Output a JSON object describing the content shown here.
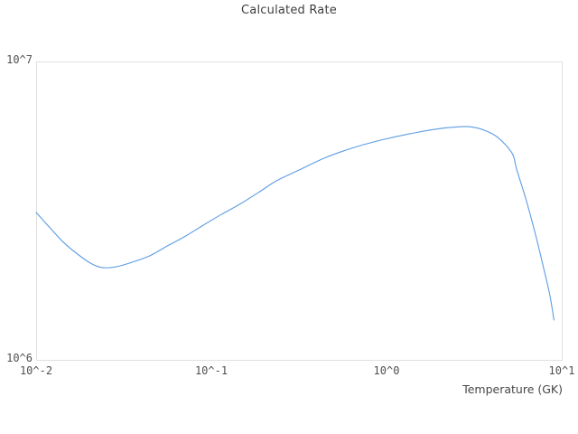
{
  "chart": {
    "title": "Calculated Rate",
    "x_axis": {
      "label": "Temperature (GK)"
    }
  },
  "chart_data": {
    "type": "line",
    "title": "Calculated Rate",
    "xlabel": "Temperature (GK)",
    "ylabel": "",
    "xscale": "log",
    "yscale": "log",
    "xlim": [
      0.01,
      10
    ],
    "ylim": [
      1000000.0,
      10000000.0
    ],
    "grid": false,
    "legend": false,
    "line_color": "#5d9ce2",
    "box_color": "#e0e0e0",
    "x_ticks": [
      {
        "label": "10^-2",
        "value": 0.01
      },
      {
        "label": "10^-1",
        "value": 0.1
      },
      {
        "label": "10^0",
        "value": 1
      },
      {
        "label": "10^1",
        "value": 10
      }
    ],
    "y_ticks": [
      {
        "label": "10^6",
        "value": 1000000.0
      },
      {
        "label": "10^7",
        "value": 10000000.0
      }
    ],
    "series": [
      {
        "name": "Calculated Rate",
        "points": [
          [
            0.01,
            3120000.0
          ],
          [
            0.012,
            2770000.0
          ],
          [
            0.0143,
            2480000.0
          ],
          [
            0.0171,
            2270000.0
          ],
          [
            0.0204,
            2110000.0
          ],
          [
            0.0236,
            2040000.0
          ],
          [
            0.0285,
            2050000.0
          ],
          [
            0.0349,
            2120000.0
          ],
          [
            0.0443,
            2230000.0
          ],
          [
            0.0562,
            2410000.0
          ],
          [
            0.0713,
            2600000.0
          ],
          [
            0.0903,
            2830000.0
          ],
          [
            0.114,
            3070000.0
          ],
          [
            0.146,
            3330000.0
          ],
          [
            0.186,
            3640000.0
          ],
          [
            0.235,
            3980000.0
          ],
          [
            0.317,
            4330000.0
          ],
          [
            0.451,
            4770000.0
          ],
          [
            0.646,
            5140000.0
          ],
          [
            0.927,
            5450000.0
          ],
          [
            1.33,
            5710000.0
          ],
          [
            1.9,
            5930000.0
          ],
          [
            2.55,
            6040000.0
          ],
          [
            3.03,
            6040000.0
          ],
          [
            3.62,
            5880000.0
          ],
          [
            4.34,
            5550000.0
          ],
          [
            5.21,
            4920000.0
          ],
          [
            5.53,
            4350000.0
          ],
          [
            6.24,
            3460000.0
          ],
          [
            7.05,
            2660000.0
          ],
          [
            7.96,
            1980000.0
          ],
          [
            8.55,
            1650000.0
          ],
          [
            9.03,
            1360000.0
          ]
        ]
      }
    ]
  }
}
